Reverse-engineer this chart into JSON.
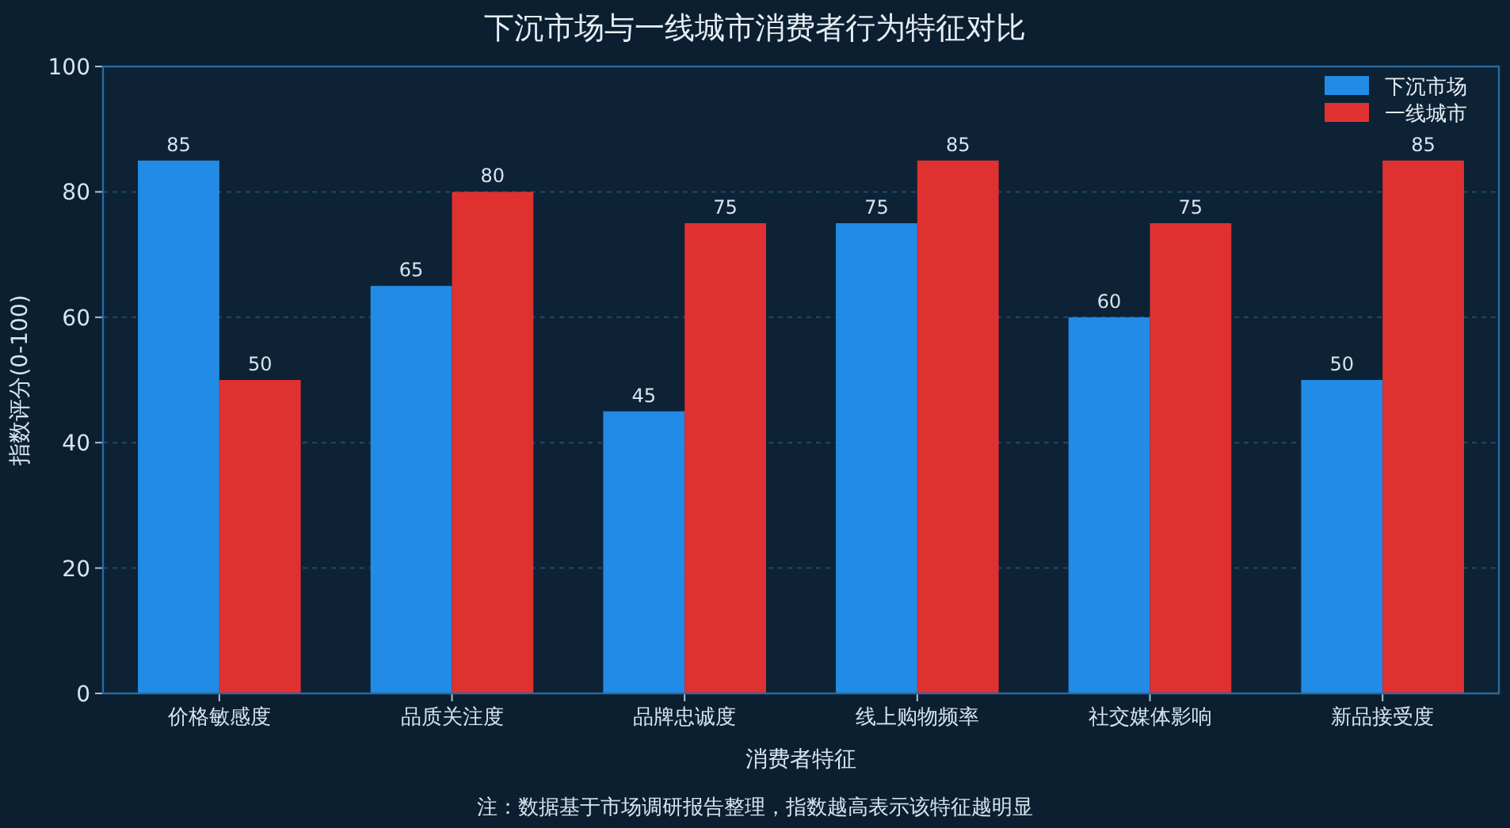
{
  "chart_data": {
    "type": "bar",
    "title": "下沉市场与一线城市消费者行为特征对比",
    "xlabel": "消费者特征",
    "ylabel": "指数评分(0-100)",
    "categories": [
      "价格敏感度",
      "品质关注度",
      "品牌忠诚度",
      "线上购物频率",
      "社交媒体影响",
      "新品接受度"
    ],
    "series": [
      {
        "name": "下沉市场",
        "color": "#228be6",
        "values": [
          85,
          65,
          45,
          75,
          60,
          50
        ]
      },
      {
        "name": "一线城市",
        "color": "#e03131",
        "values": [
          50,
          80,
          75,
          85,
          75,
          85
        ]
      }
    ],
    "ylim": [
      0,
      100
    ],
    "yticks": [
      0,
      20,
      40,
      60,
      80,
      100
    ],
    "grid": "y",
    "legend": "top right",
    "data_labels": true,
    "annotations": [
      "注：数据基于市场调研报告整理，指数越高表示该特征越明显"
    ]
  }
}
